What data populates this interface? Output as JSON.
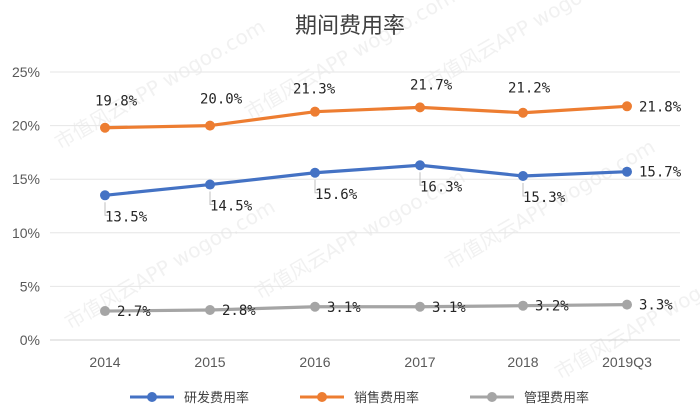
{
  "chart_data": {
    "type": "line",
    "title": "期间费用率",
    "categories": [
      "2014",
      "2015",
      "2016",
      "2017",
      "2018",
      "2019Q3"
    ],
    "yticks": [
      "0%",
      "5%",
      "10%",
      "15%",
      "20%",
      "25%"
    ],
    "ylim": [
      0,
      25
    ],
    "grid": true,
    "legend_position": "bottom",
    "series": [
      {
        "name": "研发费用率",
        "color": "#4472C4",
        "values": [
          13.5,
          14.5,
          15.6,
          16.3,
          15.3,
          15.7
        ],
        "labels": [
          "13.5%",
          "14.5%",
          "15.6%",
          "16.3%",
          "15.3%",
          "15.7%"
        ]
      },
      {
        "name": "销售费用率",
        "color": "#ED7D31",
        "values": [
          19.8,
          20.0,
          21.3,
          21.7,
          21.2,
          21.8
        ],
        "labels": [
          "19.8%",
          "20.0%",
          "21.3%",
          "21.7%",
          "21.2%",
          "21.8%"
        ]
      },
      {
        "name": "管理费用率",
        "color": "#A5A5A5",
        "values": [
          2.7,
          2.8,
          3.1,
          3.1,
          3.2,
          3.3
        ],
        "labels": [
          "2.7%",
          "2.8%",
          "3.1%",
          "3.1%",
          "3.2%",
          "3.3%"
        ]
      }
    ]
  },
  "watermark": {
    "text": "市值风云APP wogoo.com"
  }
}
